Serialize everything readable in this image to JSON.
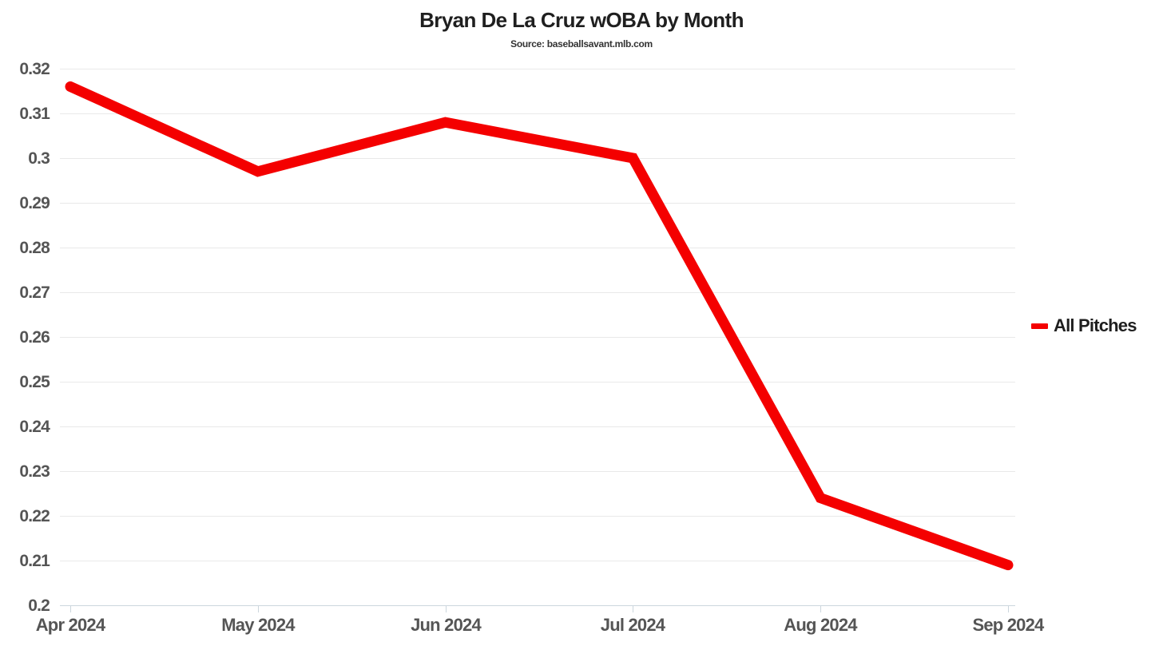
{
  "header": {
    "title": "Bryan De La Cruz wOBA by Month",
    "subtitle": "Source: baseballsavant.mlb.com"
  },
  "legend": {
    "items": [
      {
        "label": "All Pitches",
        "color": "#f40000"
      }
    ]
  },
  "colors": {
    "line": "#f40000",
    "gridline": "#e9e9e9",
    "axis_line": "#ccd6dd",
    "tick_text": "#555555",
    "title_text": "#1f1f1f",
    "background": "#ffffff"
  },
  "chart_data": {
    "type": "line",
    "categories": [
      "Apr 2024",
      "May 2024",
      "Jun 2024",
      "Jul 2024",
      "Aug 2024",
      "Sep 2024"
    ],
    "series": [
      {
        "name": "All Pitches",
        "color": "#f40000",
        "values": [
          0.316,
          0.297,
          0.308,
          0.3,
          0.224,
          0.209
        ]
      }
    ],
    "title": "Bryan De La Cruz wOBA by Month",
    "subtitle": "Source: baseballsavant.mlb.com",
    "xlabel": "",
    "ylabel": "",
    "ylim": [
      0.2,
      0.32
    ],
    "ytick_step": 0.01,
    "grid": true,
    "legend_position": "right"
  }
}
